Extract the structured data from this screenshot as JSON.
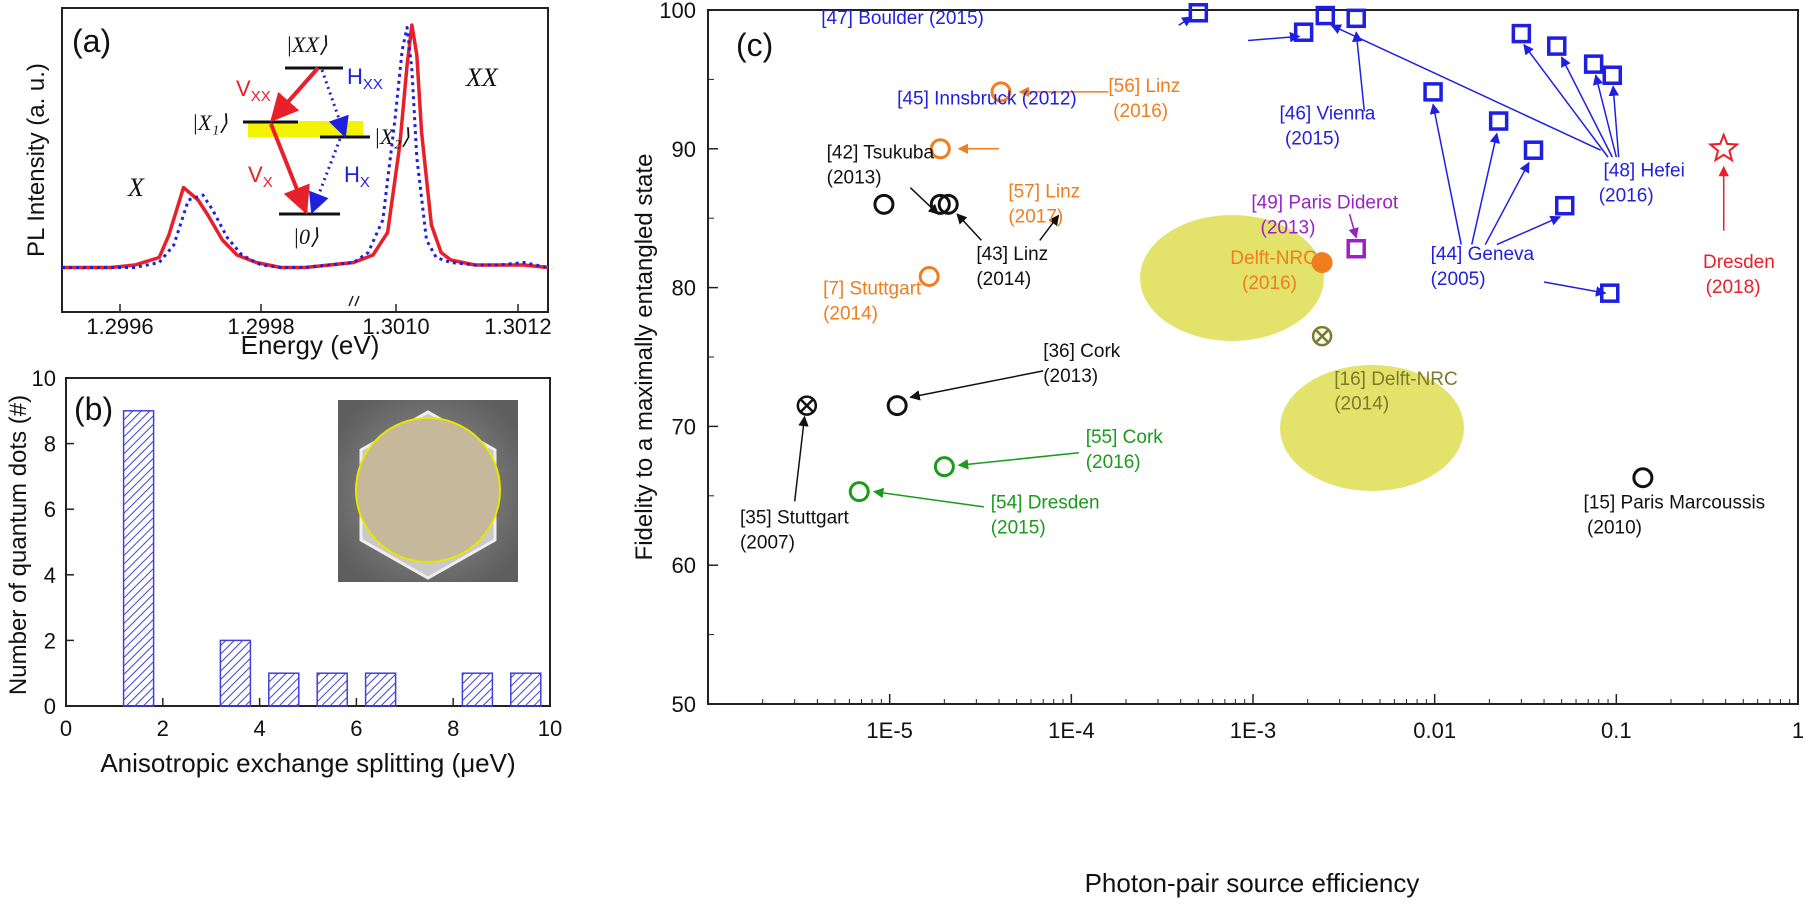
{
  "colors": {
    "red": "#e8202a",
    "blue": "#1f1fe0",
    "orange": "#f07d1e",
    "green": "#1b9a1b",
    "purple": "#9a22c4",
    "black": "#111111",
    "highlight": "#f3f300",
    "ellipse": "#dede52",
    "bar": "#4040d8"
  },
  "panel_a": {
    "tag": "(a)",
    "ylabel": "PL Intensity (a. u.)",
    "xlabel": "Energy (eV)",
    "xticks": [
      "1.2996",
      "1.2998",
      "1.3010",
      "1.3012"
    ],
    "peak_x": "X",
    "peak_xx": "XX",
    "levels": {
      "xx": "|XX⟩",
      "x1": "|X₁⟩",
      "x2": "|X₂⟩",
      "zero": "|0⟩"
    },
    "transitions": {
      "vxx": "V",
      "vxx_sub": "XX",
      "hxx": "H",
      "hxx_sub": "XX",
      "vx": "V",
      "vx_sub": "X",
      "hx": "H",
      "hx_sub": "X"
    }
  },
  "panel_b": {
    "tag": "(b)",
    "ylabel": "Number of quantum dots (#)",
    "xlabel": "Anisotropic exchange splitting (μeV)"
  },
  "panel_c": {
    "tag": "(c)",
    "ylabel": "Fidelity to a maximally entangled state",
    "xlabel": "Photon-pair source efficiency"
  },
  "chart_data": [
    {
      "type": "line",
      "panel": "a",
      "xlabel": "Energy (eV)",
      "ylabel": "PL Intensity (a. u.)",
      "x_ticks": [
        "1.2996",
        "1.2998",
        "1.3010",
        "1.3012"
      ],
      "axis_break": true,
      "series": [
        {
          "color": "#e8202a",
          "style": "solid",
          "x": [
            0,
            0.05,
            0.1,
            0.15,
            0.2,
            0.22,
            0.25,
            0.28,
            0.3,
            0.33,
            0.36,
            0.4,
            0.45,
            0.5,
            0.55,
            0.6,
            0.64,
            0.67,
            0.695,
            0.71,
            0.72,
            0.73,
            0.74,
            0.76,
            0.78,
            0.8,
            0.85,
            0.9,
            0.95,
            1.0
          ],
          "y": [
            0.01,
            0.01,
            0.01,
            0.02,
            0.05,
            0.14,
            0.33,
            0.28,
            0.22,
            0.12,
            0.06,
            0.03,
            0.01,
            0.01,
            0.02,
            0.03,
            0.06,
            0.15,
            0.5,
            0.82,
            0.98,
            0.86,
            0.55,
            0.18,
            0.07,
            0.04,
            0.02,
            0.02,
            0.02,
            0.01
          ]
        },
        {
          "color": "#1f1fe0",
          "style": "dotted",
          "x": [
            0,
            0.05,
            0.1,
            0.15,
            0.2,
            0.23,
            0.26,
            0.29,
            0.31,
            0.34,
            0.37,
            0.41,
            0.45,
            0.5,
            0.55,
            0.6,
            0.63,
            0.66,
            0.685,
            0.7,
            0.71,
            0.72,
            0.73,
            0.75,
            0.77,
            0.8,
            0.85,
            0.9,
            0.95,
            1.0
          ],
          "y": [
            0.01,
            0.01,
            0.01,
            0.01,
            0.03,
            0.1,
            0.28,
            0.3,
            0.24,
            0.13,
            0.06,
            0.02,
            0.01,
            0.01,
            0.02,
            0.03,
            0.07,
            0.2,
            0.6,
            0.88,
            0.97,
            0.8,
            0.45,
            0.12,
            0.05,
            0.03,
            0.02,
            0.02,
            0.03,
            0.01
          ]
        }
      ]
    },
    {
      "type": "bar",
      "panel": "b",
      "xlabel": "Anisotropic exchange splitting (μeV)",
      "ylabel": "Number of quantum dots (#)",
      "xlim": [
        0,
        10
      ],
      "ylim": [
        0,
        10
      ],
      "x_ticks": [
        "0",
        "2",
        "4",
        "6",
        "8",
        "10"
      ],
      "y_ticks": [
        "0",
        "2",
        "4",
        "6",
        "8",
        "10"
      ],
      "bar_centers": [
        1.5,
        3.5,
        4.5,
        5.5,
        6.5,
        8.5,
        9.5
      ],
      "values": [
        9,
        2,
        1,
        1,
        1,
        1,
        1
      ]
    },
    {
      "type": "scatter",
      "panel": "c",
      "xlabel": "Photon-pair source efficiency",
      "ylabel": "Fidelity to a maximally entangled state",
      "x_scale": "log",
      "xlim": [
        1e-06,
        1
      ],
      "ylim": [
        50,
        100
      ],
      "x_ticks": [
        "1E-5",
        "1E-4",
        "1E-3",
        "0.01",
        "0.1",
        "1"
      ],
      "y_ticks": [
        "50",
        "60",
        "70",
        "80",
        "90",
        "100"
      ],
      "points": [
        {
          "x": 3.5e-06,
          "y": 71.5,
          "marker": "circle-x",
          "color": "black"
        },
        {
          "x": 1.1e-05,
          "y": 71.5,
          "marker": "circle",
          "color": "black"
        },
        {
          "x": 6.8e-06,
          "y": 65.3,
          "marker": "circle",
          "color": "green"
        },
        {
          "x": 2e-05,
          "y": 67.1,
          "marker": "circle",
          "color": "green"
        },
        {
          "x": 1.65e-05,
          "y": 80.8,
          "marker": "circle",
          "color": "orange"
        },
        {
          "x": 1.9e-05,
          "y": 86,
          "marker": "circle",
          "color": "black"
        },
        {
          "x": 2.1e-05,
          "y": 86,
          "marker": "circle",
          "color": "black"
        },
        {
          "x": 9.3e-06,
          "y": 86,
          "marker": "circle",
          "color": "black"
        },
        {
          "x": 1.9e-05,
          "y": 90,
          "marker": "circle",
          "color": "orange"
        },
        {
          "x": 4.1e-05,
          "y": 94.1,
          "marker": "circle",
          "color": "orange"
        },
        {
          "x": 0.0005,
          "y": 99.8,
          "marker": "square",
          "color": "blue"
        },
        {
          "x": 0.0019,
          "y": 98.4,
          "marker": "square",
          "color": "blue"
        },
        {
          "x": 0.0025,
          "y": 99.6,
          "marker": "square",
          "color": "blue"
        },
        {
          "x": 0.0037,
          "y": 99.4,
          "marker": "square",
          "color": "blue"
        },
        {
          "x": 0.0098,
          "y": 94.1,
          "marker": "square",
          "color": "blue"
        },
        {
          "x": 0.0225,
          "y": 92,
          "marker": "square",
          "color": "blue"
        },
        {
          "x": 0.035,
          "y": 89.9,
          "marker": "square",
          "color": "blue"
        },
        {
          "x": 0.052,
          "y": 85.9,
          "marker": "square",
          "color": "blue"
        },
        {
          "x": 0.092,
          "y": 79.6,
          "marker": "square",
          "color": "blue"
        },
        {
          "x": 0.03,
          "y": 98.3,
          "marker": "square",
          "color": "blue"
        },
        {
          "x": 0.047,
          "y": 97.4,
          "marker": "square",
          "color": "blue"
        },
        {
          "x": 0.075,
          "y": 96.1,
          "marker": "square",
          "color": "blue"
        },
        {
          "x": 0.095,
          "y": 95.3,
          "marker": "square",
          "color": "blue"
        },
        {
          "x": 0.0037,
          "y": 82.8,
          "marker": "square",
          "color": "purple"
        },
        {
          "x": 0.0024,
          "y": 81.8,
          "marker": "filled-circle",
          "color": "orange"
        },
        {
          "x": 0.0024,
          "y": 76.5,
          "marker": "circle-x",
          "color": "olive"
        },
        {
          "x": 0.14,
          "y": 66.3,
          "marker": "circle",
          "color": "black"
        },
        {
          "x": 0.39,
          "y": 90,
          "marker": "star",
          "color": "red"
        }
      ],
      "labels": [
        {
          "text": "[47] Boulder (2015)",
          "color": "blue",
          "x": 4.2e-06,
          "y": 99.0
        },
        {
          "text": "[45] Innsbruck (2012)",
          "color": "blue",
          "x": 1.1e-05,
          "y": 93.2
        },
        {
          "text": "[56] Linz",
          "color": "orange",
          "x": 0.00016,
          "y": 94.1
        },
        {
          "text": "(2016)",
          "color": "orange",
          "x": 0.00017,
          "y": 92.3
        },
        {
          "text": "[46] Vienna",
          "color": "blue",
          "x": 0.0014,
          "y": 92.1
        },
        {
          "text": "(2015)",
          "color": "blue",
          "x": 0.0015,
          "y": 90.3
        },
        {
          "text": "[42] Tsukuba",
          "color": "black",
          "x": 4.5e-06,
          "y": 89.3
        },
        {
          "text": "(2013)",
          "color": "black",
          "x": 4.5e-06,
          "y": 87.5
        },
        {
          "text": "[57] Linz",
          "color": "orange",
          "x": 4.5e-05,
          "y": 86.5
        },
        {
          "text": "(2017)",
          "color": "orange",
          "x": 4.5e-05,
          "y": 84.7
        },
        {
          "text": "[48] Hefei",
          "color": "blue",
          "x": 0.085,
          "y": 88.0
        },
        {
          "text": "(2016)",
          "color": "blue",
          "x": 0.08,
          "y": 86.2
        },
        {
          "text": "[49] Paris Diderot",
          "color": "purple",
          "x": 0.00098,
          "y": 85.7
        },
        {
          "text": "(2013)",
          "color": "purple",
          "x": 0.0011,
          "y": 83.9
        },
        {
          "text": "Dresden",
          "color": "red",
          "x": 0.3,
          "y": 81.4
        },
        {
          "text": "(2018)",
          "color": "red",
          "x": 0.31,
          "y": 79.6
        },
        {
          "text": "[43] Linz",
          "color": "black",
          "x": 3e-05,
          "y": 82.0
        },
        {
          "text": "(2014)",
          "color": "black",
          "x": 3e-05,
          "y": 80.2
        },
        {
          "text": "[44] Geneva",
          "color": "blue",
          "x": 0.0095,
          "y": 82.0
        },
        {
          "text": "(2005)",
          "color": "blue",
          "x": 0.0095,
          "y": 80.2
        },
        {
          "text": "Delft-NRC",
          "color": "orange",
          "x": 0.00075,
          "y": 81.7
        },
        {
          "text": "(2016)",
          "color": "orange",
          "x": 0.00087,
          "y": 79.9
        },
        {
          "text": "[7] Stuttgart",
          "color": "orange",
          "x": 4.3e-06,
          "y": 79.5
        },
        {
          "text": "(2014)",
          "color": "orange",
          "x": 4.3e-06,
          "y": 77.7
        },
        {
          "text": "[36] Cork",
          "color": "black",
          "x": 7e-05,
          "y": 75.0
        },
        {
          "text": "(2013)",
          "color": "black",
          "x": 7e-05,
          "y": 73.2
        },
        {
          "text": "[16] Delft-NRC",
          "color": "olive",
          "x": 0.0028,
          "y": 73.0
        },
        {
          "text": "(2014)",
          "color": "olive",
          "x": 0.0028,
          "y": 71.2
        },
        {
          "text": "[55] Cork",
          "color": "green",
          "x": 0.00012,
          "y": 68.8
        },
        {
          "text": "(2016)",
          "color": "green",
          "x": 0.00012,
          "y": 67.0
        },
        {
          "text": "[54] Dresden",
          "color": "green",
          "x": 3.6e-05,
          "y": 64.1
        },
        {
          "text": "(2015)",
          "color": "green",
          "x": 3.6e-05,
          "y": 62.3
        },
        {
          "text": "[35] Stuttgart",
          "color": "black",
          "x": 1.5e-06,
          "y": 63.0
        },
        {
          "text": "(2007)",
          "color": "black",
          "x": 1.5e-06,
          "y": 61.2
        },
        {
          "text": "[15] Paris Marcoussis",
          "color": "black",
          "x": 0.066,
          "y": 64.1
        },
        {
          "text": "(2010)",
          "color": "black",
          "x": 0.069,
          "y": 62.3
        }
      ]
    }
  ]
}
